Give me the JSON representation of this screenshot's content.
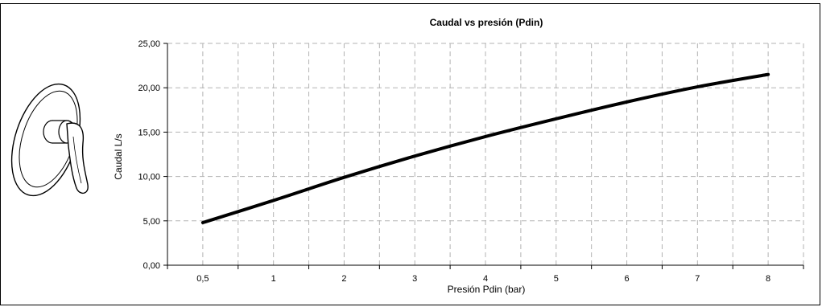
{
  "chart_data": {
    "type": "line",
    "title": "Caudal vs presión (Pdin)",
    "xlabel": "Presión Pdin (bar)",
    "ylabel": "Caudal L/s",
    "x_ticks": [
      "0,5",
      "1",
      "2",
      "3",
      "4",
      "5",
      "6",
      "7",
      "8"
    ],
    "y_ticks": [
      "0,00",
      "5,00",
      "10,00",
      "15,00",
      "20,00",
      "25,00"
    ],
    "ylim": [
      0,
      25
    ],
    "grid": true,
    "grid_style": "dashed",
    "line_color": "#000000",
    "series": [
      {
        "x": [
          0.5,
          1,
          2,
          3,
          4,
          5,
          6,
          7,
          8
        ],
        "values": [
          4.8,
          7.3,
          9.9,
          12.3,
          14.5,
          16.5,
          18.4,
          20.1,
          21.5
        ]
      }
    ]
  },
  "illustration": {
    "icon": "mixer-tap-icon"
  }
}
